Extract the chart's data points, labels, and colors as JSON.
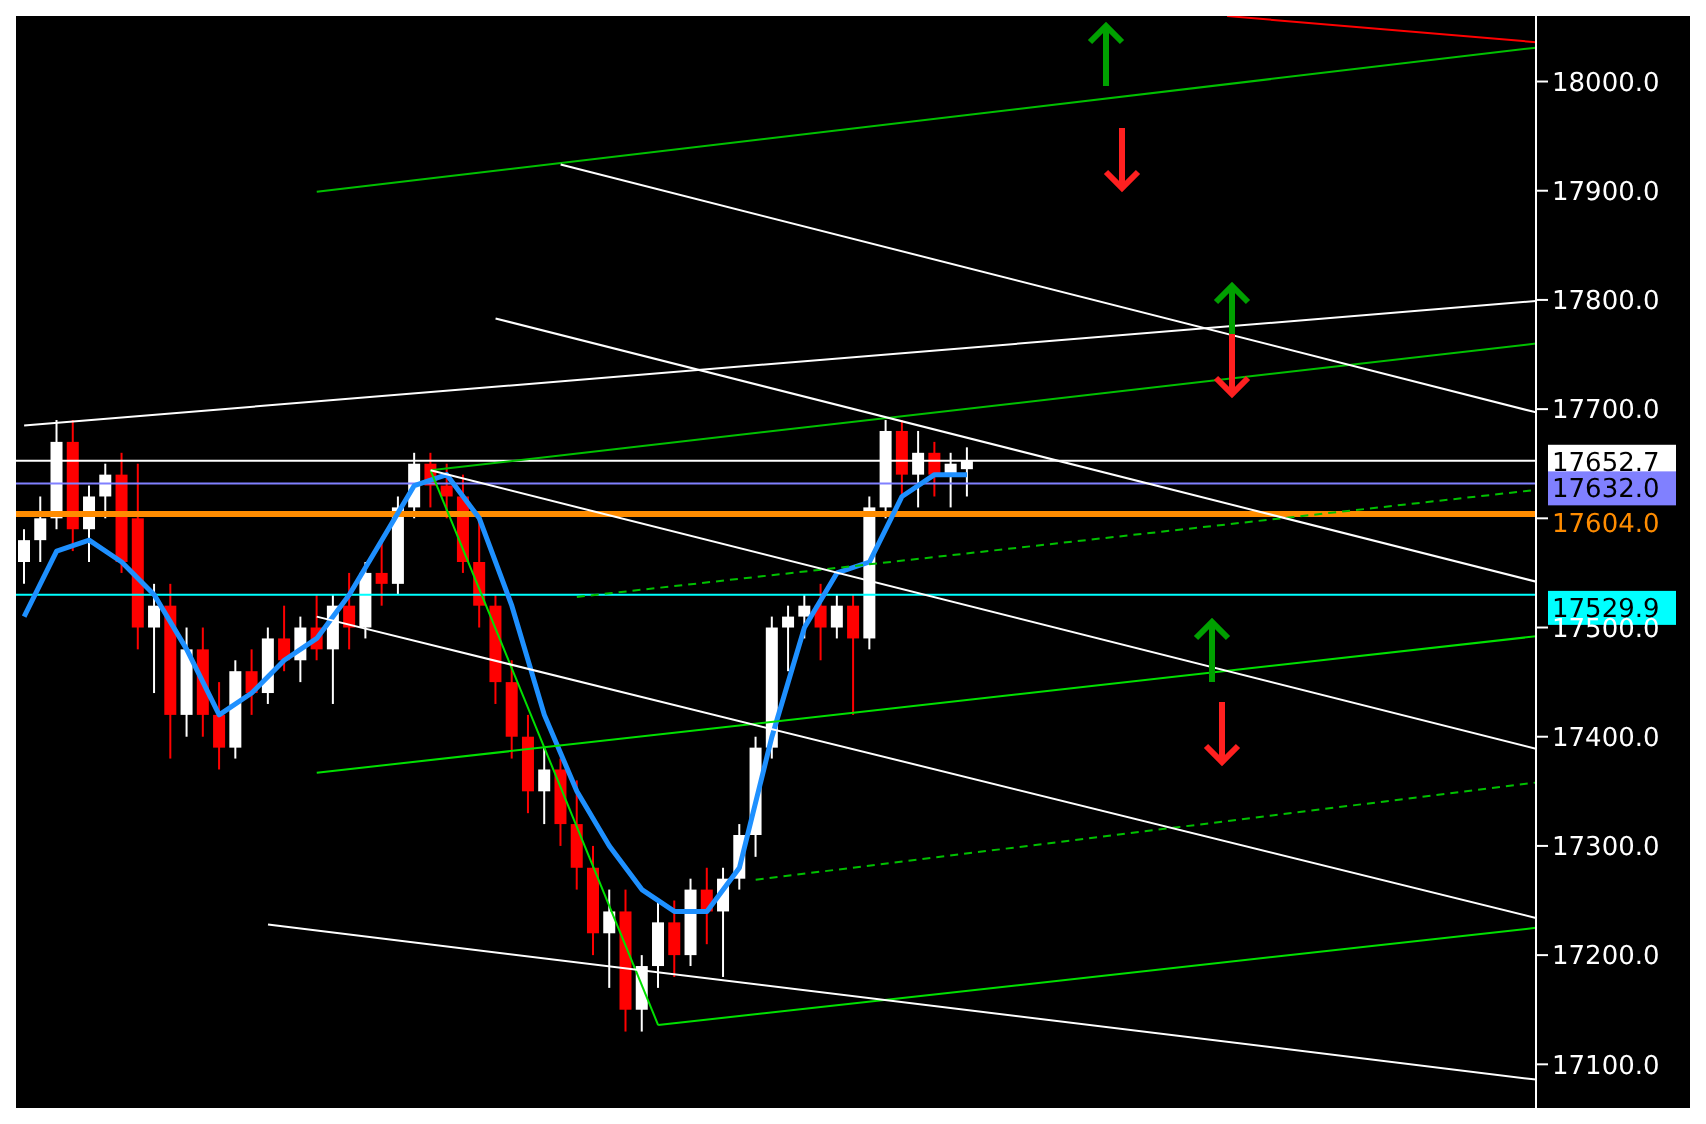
{
  "chart_data": {
    "type": "candlestick",
    "categories": [
      null,
      null,
      null,
      null,
      null,
      null,
      null,
      null,
      null,
      null,
      null,
      null,
      null,
      null,
      null,
      null,
      null,
      null,
      null,
      null,
      null,
      null,
      null,
      null,
      null,
      null,
      null,
      null,
      null,
      null,
      null,
      null,
      null,
      null,
      null,
      null,
      null,
      null,
      null,
      null,
      null,
      null,
      null,
      null,
      null,
      null,
      null,
      null,
      null,
      null,
      null,
      null,
      null,
      null,
      null,
      null,
      null,
      null,
      null,
      null,
      null,
      null,
      null,
      null,
      null,
      null,
      null,
      null,
      null,
      null,
      null,
      null,
      null,
      null,
      null,
      null,
      null,
      null,
      null,
      null,
      null,
      null,
      null,
      null,
      null,
      null,
      null,
      null,
      null,
      null,
      null,
      null,
      null,
      null
    ],
    "ohlc": [
      [
        17560,
        17590,
        17540,
        17580
      ],
      [
        17580,
        17620,
        17560,
        17600
      ],
      [
        17600,
        17690,
        17590,
        17670
      ],
      [
        17670,
        17690,
        17570,
        17590
      ],
      [
        17590,
        17630,
        17560,
        17620
      ],
      [
        17620,
        17650,
        17600,
        17640
      ],
      [
        17640,
        17660,
        17550,
        17560
      ],
      [
        17600,
        17650,
        17480,
        17500
      ],
      [
        17500,
        17540,
        17440,
        17520
      ],
      [
        17520,
        17540,
        17380,
        17420
      ],
      [
        17420,
        17500,
        17400,
        17480
      ],
      [
        17480,
        17500,
        17400,
        17420
      ],
      [
        17420,
        17450,
        17370,
        17390
      ],
      [
        17390,
        17470,
        17380,
        17460
      ],
      [
        17460,
        17480,
        17420,
        17440
      ],
      [
        17440,
        17500,
        17430,
        17490
      ],
      [
        17490,
        17520,
        17460,
        17470
      ],
      [
        17470,
        17510,
        17450,
        17500
      ],
      [
        17500,
        17530,
        17470,
        17480
      ],
      [
        17480,
        17530,
        17430,
        17520
      ],
      [
        17520,
        17550,
        17480,
        17500
      ],
      [
        17500,
        17560,
        17490,
        17550
      ],
      [
        17550,
        17580,
        17520,
        17540
      ],
      [
        17540,
        17620,
        17530,
        17610
      ],
      [
        17610,
        17660,
        17600,
        17650
      ],
      [
        17650,
        17660,
        17610,
        17630
      ],
      [
        17630,
        17650,
        17600,
        17620
      ],
      [
        17620,
        17640,
        17550,
        17560
      ],
      [
        17560,
        17600,
        17500,
        17520
      ],
      [
        17520,
        17530,
        17430,
        17450
      ],
      [
        17450,
        17470,
        17380,
        17400
      ],
      [
        17400,
        17420,
        17330,
        17350
      ],
      [
        17350,
        17390,
        17320,
        17370
      ],
      [
        17370,
        17380,
        17300,
        17320
      ],
      [
        17320,
        17360,
        17260,
        17280
      ],
      [
        17280,
        17300,
        17200,
        17220
      ],
      [
        17220,
        17260,
        17170,
        17240
      ],
      [
        17240,
        17260,
        17130,
        17150
      ],
      [
        17150,
        17200,
        17130,
        17190
      ],
      [
        17190,
        17250,
        17170,
        17230
      ],
      [
        17230,
        17250,
        17180,
        17200
      ],
      [
        17200,
        17270,
        17190,
        17260
      ],
      [
        17260,
        17280,
        17210,
        17240
      ],
      [
        17240,
        17280,
        17180,
        17270
      ],
      [
        17270,
        17320,
        17260,
        17310
      ],
      [
        17310,
        17400,
        17290,
        17390
      ],
      [
        17390,
        17510,
        17380,
        17500
      ],
      [
        17500,
        17520,
        17460,
        17510
      ],
      [
        17510,
        17530,
        17490,
        17520
      ],
      [
        17520,
        17540,
        17470,
        17500
      ],
      [
        17500,
        17530,
        17490,
        17520
      ],
      [
        17520,
        17530,
        17420,
        17490
      ],
      [
        17490,
        17620,
        17480,
        17610
      ],
      [
        17610,
        17690,
        17600,
        17680
      ],
      [
        17680,
        17690,
        17620,
        17640
      ],
      [
        17640,
        17680,
        17610,
        17660
      ],
      [
        17660,
        17670,
        17620,
        17640
      ],
      [
        17640,
        17660,
        17610,
        17650
      ],
      [
        17645,
        17665,
        17620,
        17653
      ],
      null,
      null,
      null,
      null,
      null,
      null,
      null,
      null,
      null,
      null,
      null,
      null,
      null,
      null,
      null,
      null,
      null,
      null,
      null,
      null,
      null,
      null,
      null,
      null,
      null,
      null,
      null,
      null,
      null,
      null,
      null,
      null,
      null,
      null,
      null
    ],
    "ylim": [
      17060,
      18060
    ],
    "yticks": [
      {
        "value": 17100,
        "label": "17100.0"
      },
      {
        "value": 17200,
        "label": "17200.0"
      },
      {
        "value": 17300,
        "label": "17300.0"
      },
      {
        "value": 17400,
        "label": "17400.0"
      },
      {
        "value": 17500,
        "label": "17500.0"
      },
      {
        "value": 17600,
        "label": null
      },
      {
        "value": 17700,
        "label": "17700.0"
      },
      {
        "value": 17800,
        "label": "17800.0"
      },
      {
        "value": 17900,
        "label": "17900.0"
      },
      {
        "value": 18000,
        "label": "18000.0"
      }
    ],
    "tick_labels": "y",
    "grid": false,
    "series": [
      {
        "type": "line",
        "color": "#1e90ff",
        "values": [
          17510,
          null,
          17570,
          null,
          17580,
          null,
          17560,
          null,
          17530,
          null,
          17480,
          null,
          17420,
          null,
          17440,
          null,
          17470,
          null,
          17490,
          null,
          17530,
          null,
          17580,
          null,
          17630,
          null,
          17640,
          null,
          17600,
          null,
          17520,
          null,
          17420,
          null,
          17350,
          null,
          17300,
          null,
          17260,
          null,
          17240,
          null,
          17240,
          null,
          17280,
          null,
          17400,
          null,
          17500,
          null,
          17550,
          null,
          17560,
          null,
          17620,
          null,
          17640,
          null,
          17640,
          null,
          null,
          null,
          null,
          null,
          null,
          null,
          null,
          null,
          null,
          null,
          null,
          null,
          null,
          null,
          null,
          null,
          null,
          null,
          null,
          null,
          null,
          null,
          null,
          null,
          null,
          null,
          null,
          null,
          null,
          null,
          null,
          null,
          null,
          null
        ]
      },
      {
        "type": "line",
        "color": "#00c000",
        "values": [
          null,
          null,
          null,
          null,
          null,
          null,
          null,
          null,
          null,
          null,
          null,
          null,
          null,
          null,
          null,
          null,
          null,
          null,
          17899,
          null,
          null,
          null,
          null,
          null,
          null,
          null,
          null,
          null,
          null,
          null,
          null,
          null,
          null,
          null,
          null,
          null,
          null,
          null,
          null,
          null,
          null,
          null,
          null,
          null,
          null,
          null,
          null,
          null,
          null,
          null,
          null,
          null,
          null,
          null,
          null,
          null,
          null,
          null,
          null,
          null,
          null,
          null,
          null,
          null,
          null,
          null,
          null,
          null,
          null,
          null,
          null,
          null,
          null,
          null,
          null,
          null,
          null,
          null,
          null,
          null,
          null,
          null,
          null,
          null,
          null,
          null,
          null,
          null,
          null,
          null,
          null,
          null,
          null,
          18031
        ]
      },
      {
        "type": "line",
        "color": "#00c000",
        "values": [
          null,
          null,
          null,
          null,
          null,
          null,
          null,
          null,
          null,
          null,
          null,
          null,
          null,
          null,
          null,
          null,
          null,
          null,
          null,
          null,
          null,
          null,
          null,
          null,
          null,
          17644,
          null,
          null,
          null,
          null,
          null,
          null,
          null,
          null,
          null,
          null,
          null,
          null,
          null,
          null,
          null,
          null,
          null,
          null,
          null,
          null,
          null,
          null,
          null,
          null,
          null,
          null,
          null,
          null,
          null,
          null,
          null,
          null,
          null,
          null,
          null,
          null,
          null,
          null,
          null,
          null,
          null,
          null,
          null,
          null,
          null,
          null,
          null,
          null,
          null,
          null,
          null,
          null,
          null,
          null,
          null,
          null,
          null,
          null,
          null,
          null,
          null,
          null,
          null,
          null,
          null,
          null,
          null,
          17760
        ]
      },
      {
        "type": "line",
        "color": "#00e000",
        "values": [
          null,
          null,
          null,
          null,
          null,
          null,
          null,
          null,
          null,
          null,
          null,
          null,
          null,
          null,
          null,
          null,
          null,
          null,
          17367,
          null,
          null,
          null,
          null,
          null,
          null,
          null,
          null,
          null,
          null,
          null,
          null,
          null,
          null,
          null,
          null,
          null,
          null,
          null,
          null,
          null,
          null,
          null,
          null,
          null,
          null,
          null,
          null,
          null,
          null,
          null,
          null,
          null,
          null,
          null,
          null,
          null,
          null,
          null,
          null,
          null,
          null,
          null,
          null,
          null,
          null,
          null,
          null,
          null,
          null,
          null,
          null,
          null,
          null,
          null,
          null,
          null,
          null,
          null,
          null,
          null,
          null,
          null,
          null,
          null,
          null,
          null,
          null,
          null,
          null,
          null,
          null,
          null,
          null,
          17492
        ]
      },
      {
        "type": "line",
        "color": "#00e000",
        "values": [
          null,
          null,
          null,
          null,
          null,
          null,
          null,
          null,
          null,
          null,
          null,
          null,
          null,
          null,
          null,
          null,
          null,
          null,
          null,
          null,
          null,
          null,
          null,
          null,
          null,
          null,
          null,
          null,
          null,
          null,
          null,
          null,
          null,
          null,
          null,
          null,
          null,
          null,
          null,
          17136,
          null,
          null,
          null,
          null,
          null,
          null,
          null,
          null,
          null,
          null,
          null,
          null,
          null,
          null,
          null,
          null,
          null,
          null,
          null,
          null,
          null,
          null,
          null,
          null,
          null,
          null,
          null,
          null,
          null,
          null,
          null,
          null,
          null,
          null,
          null,
          null,
          null,
          null,
          null,
          null,
          null,
          null,
          null,
          null,
          null,
          null,
          null,
          null,
          null,
          null,
          null,
          null,
          null,
          17225
        ]
      },
      {
        "type": "line",
        "color": "#00e000",
        "values": [
          null,
          null,
          null,
          null,
          null,
          null,
          null,
          null,
          null,
          null,
          null,
          null,
          null,
          null,
          null,
          null,
          null,
          null,
          null,
          null,
          null,
          null,
          null,
          null,
          null,
          17644,
          null,
          null,
          null,
          null,
          null,
          null,
          null,
          null,
          null,
          null,
          null,
          null,
          null,
          17136,
          null,
          null,
          null,
          null,
          null,
          null,
          null,
          null,
          null,
          null,
          null,
          null,
          null,
          null,
          null,
          null,
          null,
          null,
          null,
          null,
          null,
          null,
          null,
          null,
          null,
          null,
          null,
          null,
          null,
          null,
          null,
          null,
          null,
          null,
          null,
          null,
          null,
          null,
          null,
          null,
          null,
          null,
          null,
          null,
          null,
          null,
          null,
          null,
          null,
          null,
          null,
          null,
          null,
          null
        ]
      },
      {
        "type": "line",
        "color": "#00c000",
        "line_style": "dashed",
        "values": [
          null,
          null,
          null,
          null,
          null,
          null,
          null,
          null,
          null,
          null,
          null,
          null,
          null,
          null,
          null,
          null,
          null,
          null,
          null,
          null,
          null,
          null,
          null,
          null,
          null,
          null,
          null,
          null,
          null,
          null,
          null,
          null,
          null,
          null,
          17528,
          null,
          null,
          null,
          null,
          null,
          null,
          null,
          null,
          null,
          null,
          null,
          null,
          null,
          null,
          null,
          null,
          null,
          null,
          null,
          null,
          null,
          null,
          null,
          null,
          null,
          null,
          null,
          null,
          null,
          null,
          null,
          null,
          null,
          null,
          null,
          null,
          null,
          null,
          null,
          null,
          null,
          null,
          null,
          null,
          null,
          null,
          null,
          null,
          null,
          null,
          null,
          null,
          null,
          null,
          null,
          null,
          null,
          null,
          17626
        ]
      },
      {
        "type": "line",
        "color": "#00c000",
        "line_style": "dashed",
        "values": [
          null,
          null,
          null,
          null,
          null,
          null,
          null,
          null,
          null,
          null,
          null,
          null,
          null,
          null,
          null,
          null,
          null,
          null,
          null,
          null,
          null,
          null,
          null,
          null,
          null,
          null,
          null,
          null,
          null,
          null,
          null,
          null,
          null,
          null,
          null,
          null,
          null,
          null,
          null,
          null,
          null,
          null,
          null,
          null,
          null,
          17269,
          null,
          null,
          null,
          null,
          null,
          null,
          null,
          null,
          null,
          null,
          null,
          null,
          null,
          null,
          null,
          null,
          null,
          null,
          null,
          null,
          null,
          null,
          null,
          null,
          null,
          null,
          null,
          null,
          null,
          null,
          null,
          null,
          null,
          null,
          null,
          null,
          null,
          null,
          null,
          null,
          null,
          null,
          null,
          null,
          null,
          null,
          null,
          17358
        ]
      },
      {
        "type": "line",
        "color": "#ffffff",
        "values": [
          null,
          null,
          null,
          null,
          null,
          null,
          null,
          null,
          null,
          null,
          null,
          null,
          null,
          null,
          null,
          null,
          null,
          null,
          null,
          null,
          null,
          null,
          null,
          null,
          null,
          null,
          null,
          null,
          null,
          null,
          null,
          null,
          null,
          17924,
          null,
          null,
          null,
          null,
          null,
          null,
          null,
          null,
          null,
          null,
          null,
          null,
          null,
          null,
          null,
          null,
          null,
          null,
          null,
          null,
          null,
          null,
          null,
          null,
          null,
          null,
          null,
          null,
          null,
          null,
          null,
          null,
          null,
          null,
          null,
          null,
          null,
          null,
          null,
          null,
          null,
          null,
          null,
          null,
          null,
          null,
          null,
          null,
          null,
          null,
          null,
          null,
          null,
          null,
          null,
          null,
          null,
          null,
          null,
          17697
        ]
      },
      {
        "type": "line",
        "color": "#ffffff",
        "values": [
          null,
          null,
          null,
          null,
          null,
          null,
          null,
          null,
          null,
          null,
          null,
          null,
          null,
          null,
          null,
          null,
          null,
          null,
          null,
          null,
          null,
          null,
          null,
          null,
          null,
          null,
          null,
          null,
          null,
          17783,
          null,
          null,
          null,
          null,
          null,
          null,
          null,
          null,
          null,
          null,
          null,
          null,
          null,
          null,
          null,
          null,
          null,
          null,
          null,
          null,
          null,
          null,
          null,
          null,
          null,
          null,
          null,
          null,
          null,
          null,
          null,
          null,
          null,
          null,
          null,
          null,
          null,
          null,
          null,
          null,
          null,
          null,
          null,
          null,
          null,
          null,
          null,
          null,
          null,
          null,
          null,
          null,
          null,
          null,
          null,
          null,
          null,
          null,
          null,
          null,
          null,
          null,
          null,
          17542
        ]
      },
      {
        "type": "line",
        "color": "#ffffff",
        "values": [
          null,
          null,
          null,
          null,
          null,
          null,
          null,
          null,
          null,
          null,
          null,
          null,
          null,
          null,
          null,
          null,
          null,
          null,
          null,
          null,
          null,
          null,
          null,
          null,
          null,
          17644,
          null,
          null,
          null,
          null,
          null,
          null,
          null,
          null,
          null,
          null,
          null,
          null,
          null,
          null,
          null,
          null,
          null,
          null,
          null,
          null,
          null,
          null,
          null,
          null,
          null,
          null,
          null,
          null,
          null,
          null,
          null,
          null,
          null,
          null,
          null,
          null,
          null,
          null,
          null,
          null,
          null,
          null,
          null,
          null,
          null,
          null,
          null,
          null,
          null,
          null,
          null,
          null,
          null,
          null,
          null,
          null,
          null,
          null,
          null,
          null,
          null,
          null,
          null,
          null,
          null,
          null,
          null,
          17389
        ]
      },
      {
        "type": "line",
        "color": "#ffffff",
        "values": [
          null,
          null,
          null,
          null,
          null,
          null,
          null,
          null,
          null,
          null,
          null,
          null,
          null,
          null,
          null,
          null,
          null,
          null,
          17510,
          null,
          null,
          null,
          null,
          null,
          null,
          null,
          null,
          null,
          null,
          null,
          null,
          null,
          null,
          null,
          null,
          null,
          null,
          null,
          null,
          null,
          null,
          null,
          null,
          null,
          null,
          null,
          null,
          null,
          null,
          null,
          null,
          null,
          null,
          null,
          null,
          null,
          null,
          null,
          null,
          null,
          null,
          null,
          null,
          null,
          null,
          null,
          null,
          null,
          null,
          null,
          null,
          null,
          null,
          null,
          null,
          null,
          null,
          null,
          null,
          null,
          null,
          null,
          null,
          null,
          null,
          null,
          null,
          null,
          null,
          null,
          null,
          null,
          null,
          17234
        ]
      },
      {
        "type": "line",
        "color": "#ffffff",
        "values": [
          null,
          null,
          null,
          null,
          null,
          null,
          null,
          null,
          null,
          null,
          null,
          null,
          null,
          null,
          null,
          17228,
          null,
          null,
          null,
          null,
          null,
          null,
          null,
          null,
          null,
          null,
          null,
          null,
          null,
          null,
          null,
          null,
          null,
          null,
          null,
          null,
          null,
          null,
          null,
          null,
          null,
          null,
          null,
          null,
          null,
          null,
          null,
          null,
          null,
          null,
          null,
          null,
          null,
          null,
          null,
          null,
          null,
          null,
          null,
          null,
          null,
          null,
          null,
          null,
          null,
          null,
          null,
          null,
          null,
          null,
          null,
          null,
          null,
          null,
          null,
          null,
          null,
          null,
          null,
          null,
          null,
          null,
          null,
          null,
          null,
          null,
          null,
          null,
          null,
          null,
          null,
          null,
          null,
          17086
        ]
      },
      {
        "type": "line",
        "color": "#ffffff",
        "values": [
          17685,
          null,
          null,
          null,
          null,
          null,
          null,
          null,
          null,
          null,
          null,
          null,
          null,
          null,
          null,
          null,
          null,
          null,
          null,
          null,
          null,
          null,
          null,
          null,
          null,
          null,
          null,
          null,
          null,
          null,
          null,
          null,
          null,
          null,
          null,
          null,
          null,
          null,
          null,
          null,
          null,
          null,
          null,
          null,
          null,
          null,
          null,
          null,
          null,
          null,
          null,
          null,
          null,
          null,
          null,
          null,
          null,
          null,
          null,
          null,
          null,
          null,
          null,
          null,
          null,
          null,
          null,
          null,
          null,
          null,
          null,
          null,
          null,
          null,
          null,
          null,
          null,
          null,
          null,
          null,
          null,
          null,
          null,
          null,
          null,
          null,
          null,
          null,
          null,
          null,
          null,
          null,
          null,
          17799
        ]
      },
      {
        "type": "line",
        "color": "#ff0000",
        "values": [
          null,
          null,
          null,
          null,
          null,
          null,
          null,
          null,
          null,
          null,
          null,
          null,
          null,
          null,
          null,
          null,
          null,
          null,
          null,
          null,
          null,
          null,
          null,
          null,
          null,
          null,
          null,
          null,
          null,
          null,
          null,
          null,
          null,
          null,
          null,
          null,
          null,
          null,
          null,
          null,
          null,
          null,
          null,
          null,
          null,
          null,
          null,
          null,
          null,
          null,
          null,
          null,
          null,
          null,
          null,
          null,
          null,
          null,
          null,
          null,
          null,
          null,
          null,
          null,
          null,
          null,
          null,
          null,
          null,
          null,
          null,
          null,
          null,
          null,
          18060,
          null,
          null,
          null,
          null,
          null,
          null,
          null,
          null,
          null,
          null,
          null,
          null,
          null,
          null,
          null,
          null,
          null,
          null,
          18036
        ]
      }
    ],
    "ref_lines": [
      {
        "axis": "y",
        "value": 17652.7,
        "label": "17652.7",
        "color": "#ffffff"
      },
      {
        "axis": "y",
        "value": 17632.0,
        "label": "17632.0",
        "color": "#8080ff"
      },
      {
        "axis": "y",
        "value": 17604.0,
        "label": "17604.0",
        "color": "#ff8c00"
      },
      {
        "axis": "y",
        "value": 17529.9,
        "label": "17529.9",
        "color": "#00ffff"
      }
    ]
  }
}
